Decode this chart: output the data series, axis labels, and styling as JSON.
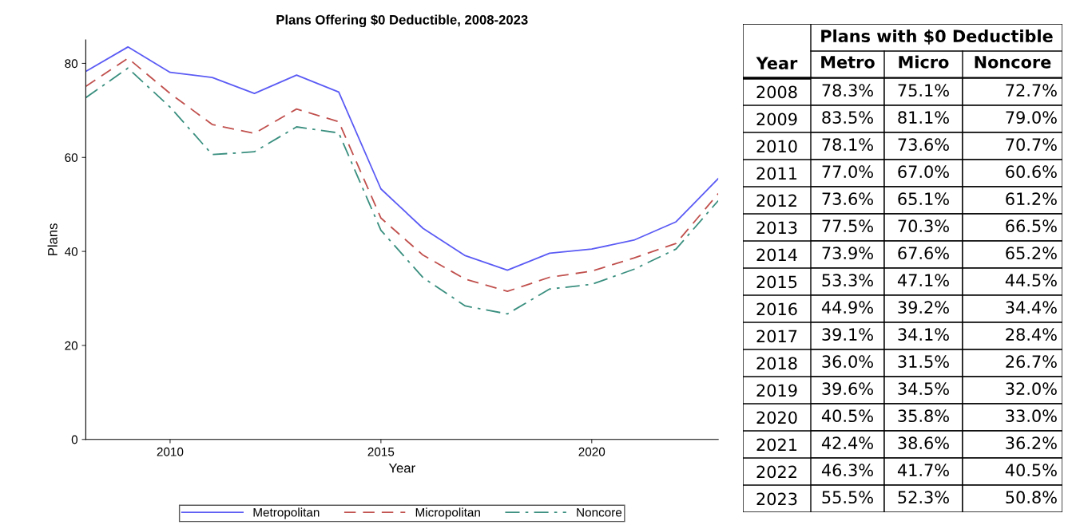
{
  "chart_data": [
    {
      "type": "line",
      "title": "Plans Offering $0 Deductible, 2008-2023",
      "xlabel": "Year",
      "ylabel": "Plans",
      "x": [
        2008,
        2009,
        2010,
        2011,
        2012,
        2013,
        2014,
        2015,
        2016,
        2017,
        2018,
        2019,
        2020,
        2021,
        2022,
        2023
      ],
      "series": [
        {
          "name": "Metropolitan",
          "color": "#5b5bf5",
          "line_style": "solid",
          "values": [
            78.3,
            83.5,
            78.1,
            77.0,
            73.6,
            77.5,
            73.9,
            53.3,
            44.9,
            39.1,
            36.0,
            39.6,
            40.5,
            42.4,
            46.3,
            55.5
          ]
        },
        {
          "name": "Micropolitan",
          "color": "#c0504d",
          "line_style": "dashed",
          "values": [
            75.1,
            81.1,
            73.6,
            67.0,
            65.1,
            70.3,
            67.6,
            47.1,
            39.2,
            34.1,
            31.5,
            34.5,
            35.8,
            38.6,
            41.7,
            52.3
          ]
        },
        {
          "name": "Noncore",
          "color": "#3a8f7f",
          "line_style": "dashdot",
          "values": [
            72.7,
            79.0,
            70.7,
            60.6,
            61.2,
            66.5,
            65.2,
            44.5,
            34.4,
            28.4,
            26.7,
            32.0,
            33.0,
            36.2,
            40.5,
            50.8
          ]
        }
      ],
      "xlim": [
        2008,
        2023
      ],
      "xticks": [
        2010,
        2015,
        2020
      ],
      "ylim": [
        0,
        85
      ],
      "yticks": [
        0,
        20,
        40,
        60,
        80
      ],
      "grid": false,
      "legend": "bottom",
      "marker": "none"
    },
    {
      "type": "heatmap",
      "title": "Plans with $0 Deductible",
      "ylabel": "Year",
      "categories": [
        "Metro",
        "Micro",
        "Noncore"
      ],
      "y_categories": [
        "2008",
        "2009",
        "2010",
        "2011",
        "2012",
        "2013",
        "2014",
        "2015",
        "2016",
        "2017",
        "2018",
        "2019",
        "2020",
        "2021",
        "2022",
        "2023"
      ],
      "cells": [
        [
          "78.3%",
          "75.1%",
          "72.7%"
        ],
        [
          "83.5%",
          "81.1%",
          "79.0%"
        ],
        [
          "78.1%",
          "73.6%",
          "70.7%"
        ],
        [
          "77.0%",
          "67.0%",
          "60.6%"
        ],
        [
          "73.6%",
          "65.1%",
          "61.2%"
        ],
        [
          "77.5%",
          "70.3%",
          "66.5%"
        ],
        [
          "73.9%",
          "67.6%",
          "65.2%"
        ],
        [
          "53.3%",
          "47.1%",
          "44.5%"
        ],
        [
          "44.9%",
          "39.2%",
          "34.4%"
        ],
        [
          "39.1%",
          "34.1%",
          "28.4%"
        ],
        [
          "36.0%",
          "31.5%",
          "26.7%"
        ],
        [
          "39.6%",
          "34.5%",
          "32.0%"
        ],
        [
          "40.5%",
          "35.8%",
          "33.0%"
        ],
        [
          "42.4%",
          "38.6%",
          "36.2%"
        ],
        [
          "46.3%",
          "41.7%",
          "40.5%"
        ],
        [
          "55.5%",
          "52.3%",
          "50.8%"
        ]
      ]
    }
  ]
}
